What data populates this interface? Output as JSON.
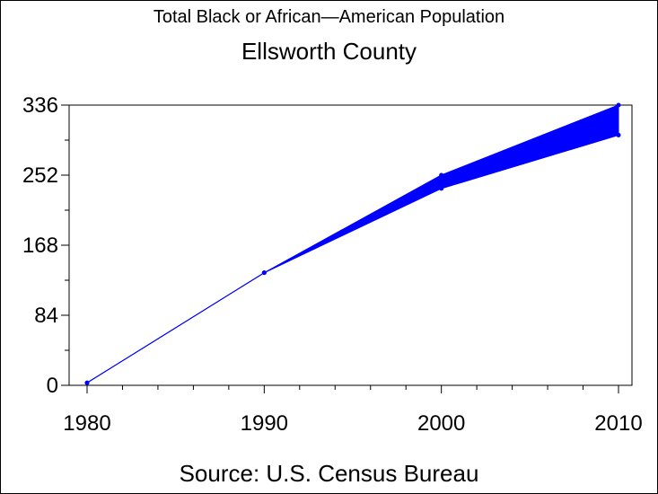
{
  "chart_data": {
    "type": "line",
    "subtitle": "Total Black or African—American Population",
    "title": "Ellsworth County",
    "source": "Source: U.S. Census Bureau",
    "x": [
      1980,
      1990,
      2000,
      2010
    ],
    "xlim": [
      1980,
      2010
    ],
    "ylim": [
      0,
      336
    ],
    "xticks": [
      1980,
      1990,
      2000,
      2010
    ],
    "yticks": [
      0,
      84,
      168,
      252,
      336
    ],
    "series": [
      {
        "values": [
          3,
          135,
          236,
          300
        ],
        "color": "#0000ff"
      },
      {
        "values": [
          3,
          135,
          252,
          336
        ],
        "color": "#0000ff"
      }
    ],
    "grid": false,
    "legend": "none"
  }
}
